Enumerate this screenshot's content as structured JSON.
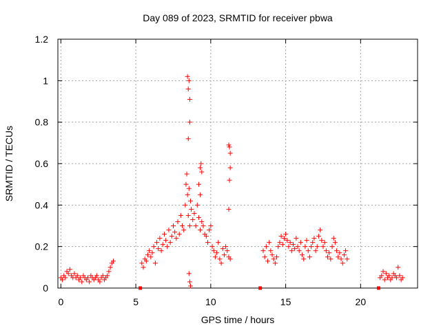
{
  "chart_data": {
    "type": "scatter",
    "title": "Day 089 of 2023, SRMTID for receiver pbwa",
    "xlabel": "GPS time / hours",
    "ylabel": "SRMTID / TECUs",
    "xlim": [
      -0.2,
      23.8
    ],
    "ylim": [
      0,
      1.2
    ],
    "xticks": [
      0,
      5,
      10,
      15,
      20
    ],
    "xtick_labels": [
      "0",
      "5",
      "10",
      "15",
      "20"
    ],
    "yticks": [
      0,
      0.2,
      0.4,
      0.6,
      0.8,
      1.0,
      1.2
    ],
    "ytick_labels": [
      "0",
      "0.2",
      "0.4",
      "0.6",
      "0.8",
      "1",
      "1.2"
    ],
    "grid": true,
    "marker": "plus",
    "color": "#ff0000",
    "series": [
      {
        "name": "SRMTID",
        "x": [
          0.0,
          0.1,
          0.2,
          0.3,
          0.4,
          0.5,
          0.6,
          0.7,
          0.8,
          0.9,
          1.0,
          1.1,
          1.2,
          1.3,
          1.4,
          1.5,
          1.6,
          1.7,
          1.8,
          1.9,
          2.0,
          2.1,
          2.2,
          2.3,
          2.4,
          2.5,
          2.6,
          2.7,
          2.8,
          2.9,
          3.0,
          3.1,
          3.2,
          3.3,
          3.4,
          3.5,
          5.4,
          5.5,
          5.6,
          5.7,
          5.8,
          5.9,
          6.0,
          6.1,
          6.2,
          6.3,
          6.4,
          6.5,
          6.6,
          6.7,
          6.8,
          6.9,
          7.0,
          7.1,
          7.2,
          7.3,
          7.4,
          7.5,
          7.6,
          7.7,
          7.8,
          7.9,
          8.0,
          8.1,
          8.2,
          8.3,
          8.35,
          8.4,
          8.45,
          8.5,
          8.55,
          8.6,
          8.65,
          8.7,
          8.8,
          8.9,
          9.0,
          9.1,
          9.2,
          9.3,
          9.4,
          9.5,
          9.6,
          9.7,
          9.8,
          9.9,
          10.0,
          10.1,
          10.2,
          10.3,
          10.4,
          10.5,
          10.6,
          10.7,
          10.8,
          10.9,
          11.0,
          11.1,
          11.2,
          11.3,
          13.5,
          13.6,
          13.7,
          13.8,
          13.9,
          14.0,
          14.1,
          14.2,
          14.3,
          14.4,
          14.5,
          14.6,
          14.7,
          14.8,
          14.9,
          15.0,
          15.1,
          15.2,
          15.3,
          15.4,
          15.5,
          15.6,
          15.7,
          15.8,
          15.9,
          16.0,
          16.1,
          16.2,
          16.3,
          16.4,
          16.5,
          16.6,
          16.7,
          16.8,
          16.9,
          17.0,
          17.1,
          17.2,
          17.3,
          17.4,
          17.5,
          17.6,
          17.7,
          17.8,
          17.9,
          18.0,
          18.1,
          18.2,
          18.3,
          18.4,
          18.5,
          18.6,
          18.7,
          18.8,
          18.9,
          19.0,
          19.1,
          21.3,
          21.4,
          21.5,
          21.6,
          21.7,
          21.8,
          21.9,
          22.0,
          22.1,
          22.2,
          22.3,
          22.4,
          22.5,
          22.6,
          22.7,
          22.8,
          8.45,
          8.5,
          8.55,
          8.6,
          8.6,
          9.3,
          9.35,
          9.4,
          11.2,
          11.25,
          11.3,
          11.3,
          11.25,
          8.5,
          8.55,
          8.6,
          8.65,
          9.2,
          9.3,
          11.2
        ],
        "y": [
          0.05,
          0.04,
          0.06,
          0.05,
          0.08,
          0.07,
          0.09,
          0.06,
          0.05,
          0.07,
          0.05,
          0.06,
          0.04,
          0.05,
          0.03,
          0.06,
          0.05,
          0.04,
          0.05,
          0.03,
          0.06,
          0.05,
          0.04,
          0.05,
          0.06,
          0.04,
          0.03,
          0.05,
          0.06,
          0.04,
          0.05,
          0.06,
          0.08,
          0.1,
          0.12,
          0.13,
          0.12,
          0.1,
          0.14,
          0.13,
          0.16,
          0.18,
          0.15,
          0.17,
          0.2,
          0.12,
          0.22,
          0.19,
          0.24,
          0.18,
          0.21,
          0.26,
          0.23,
          0.2,
          0.28,
          0.22,
          0.25,
          0.3,
          0.27,
          0.24,
          0.32,
          0.26,
          0.35,
          0.3,
          0.28,
          0.4,
          0.5,
          0.55,
          0.45,
          0.35,
          0.48,
          0.3,
          0.42,
          0.38,
          0.33,
          0.36,
          0.3,
          0.4,
          0.34,
          0.28,
          0.32,
          0.3,
          0.26,
          0.25,
          0.22,
          0.28,
          0.3,
          0.2,
          0.18,
          0.15,
          0.17,
          0.22,
          0.14,
          0.12,
          0.19,
          0.16,
          0.2,
          0.18,
          0.15,
          0.14,
          0.18,
          0.15,
          0.2,
          0.13,
          0.22,
          0.18,
          0.16,
          0.14,
          0.12,
          0.15,
          0.2,
          0.22,
          0.25,
          0.21,
          0.24,
          0.26,
          0.23,
          0.2,
          0.22,
          0.18,
          0.21,
          0.19,
          0.24,
          0.2,
          0.18,
          0.22,
          0.16,
          0.14,
          0.2,
          0.23,
          0.18,
          0.15,
          0.2,
          0.22,
          0.24,
          0.18,
          0.2,
          0.25,
          0.28,
          0.23,
          0.2,
          0.22,
          0.18,
          0.15,
          0.17,
          0.14,
          0.2,
          0.24,
          0.22,
          0.18,
          0.15,
          0.17,
          0.14,
          0.12,
          0.16,
          0.18,
          0.14,
          0.05,
          0.06,
          0.08,
          0.04,
          0.07,
          0.05,
          0.06,
          0.04,
          0.05,
          0.07,
          0.06,
          0.05,
          0.1,
          0.06,
          0.04,
          0.05,
          1.02,
          0.96,
          1.0,
          0.91,
          0.8,
          0.58,
          0.6,
          0.56,
          0.69,
          0.68,
          0.65,
          0.58,
          0.52,
          0.72,
          0.07,
          0.03,
          0.01,
          0.5,
          0.45,
          0.38
        ]
      }
    ],
    "gap_markers_x": [
      5.3,
      13.3,
      21.2
    ]
  }
}
